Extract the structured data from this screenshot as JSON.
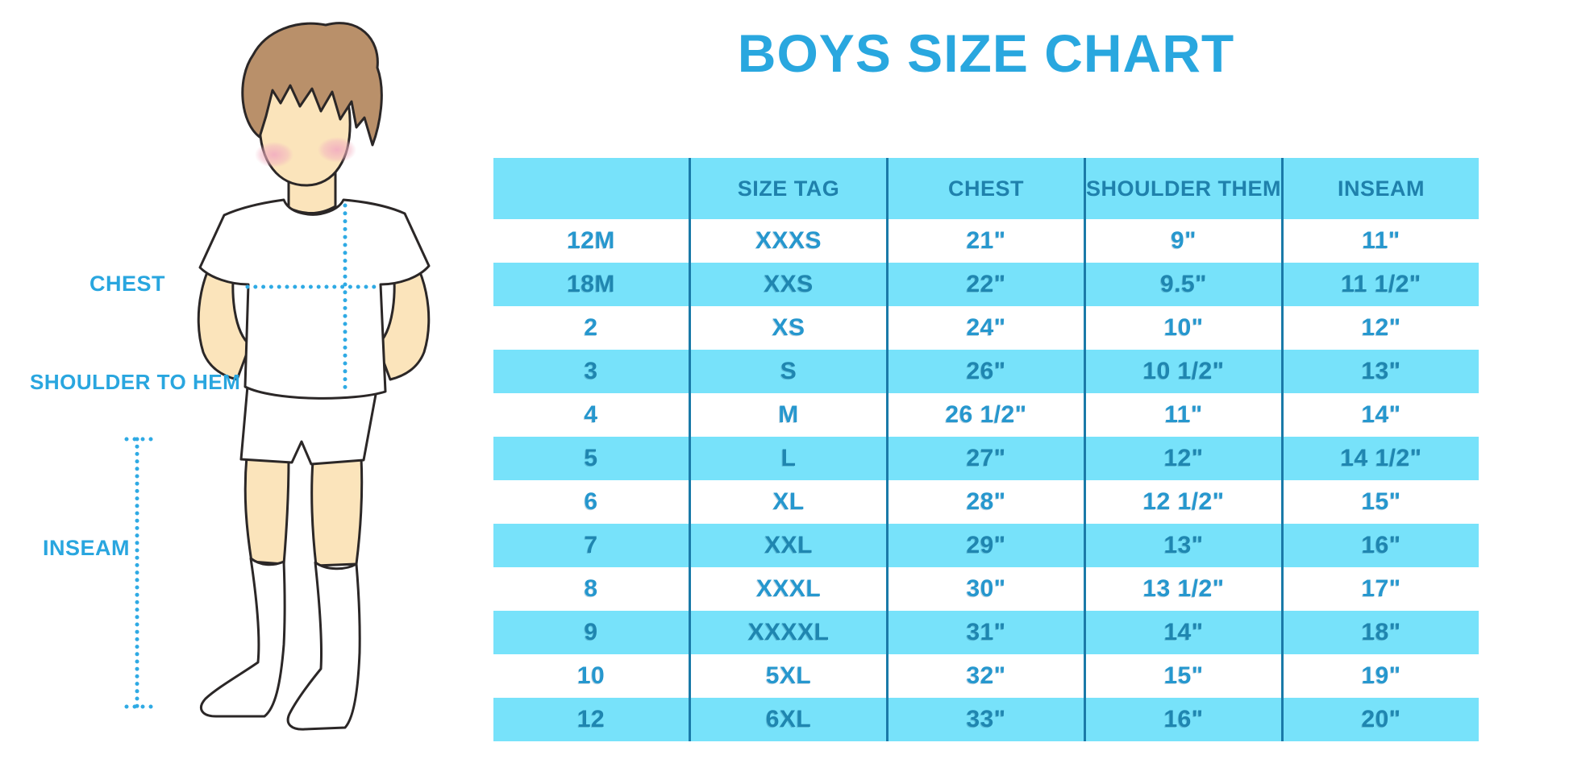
{
  "title": "BOYS SIZE CHART",
  "figure_labels": {
    "chest": "CHEST",
    "shoulder_to_hem": "SHOULDER TO HEM",
    "inseam": "INSEAM"
  },
  "chart_data": {
    "type": "table",
    "title": "BOYS SIZE CHART",
    "columns": [
      "",
      "SIZE TAG",
      "CHEST",
      "SHOULDER THEM",
      "INSEAM"
    ],
    "rows": [
      [
        "12M",
        "XXXS",
        "21\"",
        "9\"",
        "11\""
      ],
      [
        "18M",
        "XXS",
        "22\"",
        "9.5\"",
        "11 1/2\""
      ],
      [
        "2",
        "XS",
        "24\"",
        "10\"",
        "12\""
      ],
      [
        "3",
        "S",
        "26\"",
        "10 1/2\"",
        "13\""
      ],
      [
        "4",
        "M",
        "26 1/2\"",
        "11\"",
        "14\""
      ],
      [
        "5",
        "L",
        "27\"",
        "12\"",
        "14 1/2\""
      ],
      [
        "6",
        "XL",
        "28\"",
        "12 1/2\"",
        "15\""
      ],
      [
        "7",
        "XXL",
        "29\"",
        "13\"",
        "16\""
      ],
      [
        "8",
        "XXXL",
        "30\"",
        "13 1/2\"",
        "17\""
      ],
      [
        "9",
        "XXXXL",
        "31\"",
        "14\"",
        "18\""
      ],
      [
        "10",
        "5XL",
        "32\"",
        "15\"",
        "19\""
      ],
      [
        "12",
        "6XL",
        "33\"",
        "16\"",
        "20\""
      ]
    ],
    "layout": {
      "striping": "header cyan, then rows alternate white/cyan starting with white",
      "grid": "vertical dividers only"
    }
  },
  "colors": {
    "accent_blue": "#29a7df",
    "row_cyan": "#77e2fa",
    "header_text": "#1f81ac",
    "cell_text_on_white": "#2697ce",
    "cell_text_on_cyan": "#1f86b0",
    "column_divider": "#1a7aa8",
    "dotted_line": "#2faae4",
    "skin": "#fbe4bb",
    "hair": "#b9906a",
    "blush": "#f2afc0",
    "outline": "#2b2727"
  }
}
